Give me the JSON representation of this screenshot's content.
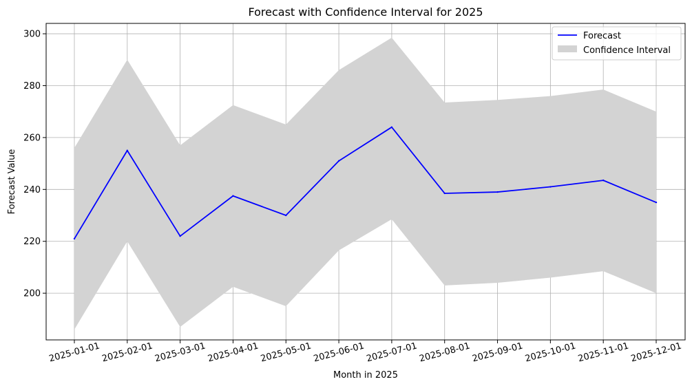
{
  "chart_data": {
    "type": "line",
    "title": "Forecast with Confidence Interval for 2025",
    "xlabel": "Month in 2025",
    "ylabel": "Forecast Value",
    "categories": [
      "2025-01-01",
      "2025-02-01",
      "2025-03-01",
      "2025-04-01",
      "2025-05-01",
      "2025-06-01",
      "2025-07-01",
      "2025-08-01",
      "2025-09-01",
      "2025-10-01",
      "2025-11-01",
      "2025-12-01"
    ],
    "series": [
      {
        "name": "Forecast",
        "values": [
          221,
          255,
          222,
          237.5,
          230,
          251,
          264,
          238.5,
          239,
          241,
          243.5,
          235
        ],
        "color": "#0000ff"
      }
    ],
    "confidence_interval": {
      "name": "Confidence Interval",
      "lower": [
        186,
        220,
        187,
        202.5,
        195,
        216.5,
        228.5,
        203,
        204,
        206,
        208.5,
        200
      ],
      "upper": [
        256,
        290,
        257,
        272.5,
        265,
        286,
        298.5,
        273.5,
        274.5,
        276,
        278.5,
        270
      ],
      "color": "#d3d3d3"
    },
    "ylim": [
      182,
      304
    ],
    "yticks": [
      200,
      220,
      240,
      260,
      280,
      300
    ],
    "grid": true,
    "legend_position": "top-right"
  }
}
